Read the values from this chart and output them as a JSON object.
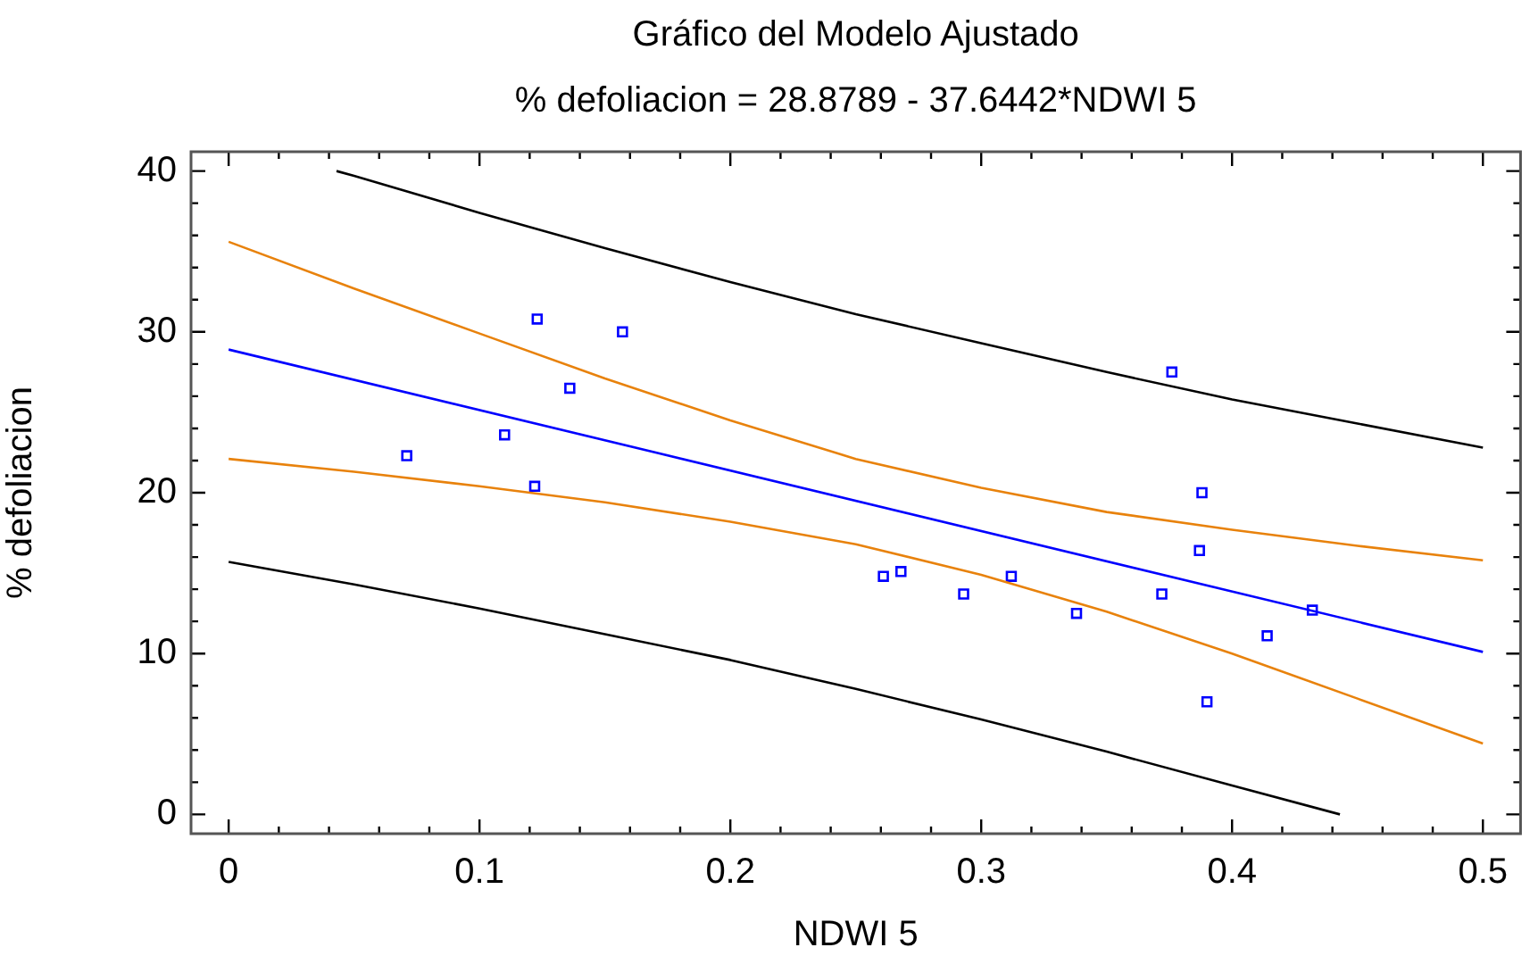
{
  "chart_data": {
    "type": "scatter",
    "title": "Gráfico del Modelo Ajustado",
    "subtitle": "% defoliacion = 28.8789 - 37.6442*NDWI 5",
    "xlabel": "NDWI 5",
    "ylabel": "% defoliacion",
    "xlim": [
      -0.015,
      0.515
    ],
    "ylim": [
      -1.2,
      41.2
    ],
    "xticks": [
      0,
      {
        "value": 0.02,
        "label": null
      },
      {
        "value": 0.04,
        "label": null
      },
      {
        "value": 0.06,
        "label": null
      },
      {
        "value": 0.08,
        "label": null
      },
      0.1,
      {
        "value": 0.12,
        "label": null
      },
      {
        "value": 0.14,
        "label": null
      },
      {
        "value": 0.16,
        "label": null
      },
      {
        "value": 0.18,
        "label": null
      },
      0.2,
      {
        "value": 0.22,
        "label": null
      },
      {
        "value": 0.24,
        "label": null
      },
      {
        "value": 0.26,
        "label": null
      },
      {
        "value": 0.28,
        "label": null
      },
      0.3,
      {
        "value": 0.32,
        "label": null
      },
      {
        "value": 0.34,
        "label": null
      },
      {
        "value": 0.36,
        "label": null
      },
      {
        "value": 0.38,
        "label": null
      },
      0.4,
      {
        "value": 0.42,
        "label": null
      },
      {
        "value": 0.44,
        "label": null
      },
      {
        "value": 0.46,
        "label": null
      },
      {
        "value": 0.48,
        "label": null
      },
      0.5
    ],
    "yticks": [
      0,
      {
        "value": 2,
        "label": null
      },
      {
        "value": 4,
        "label": null
      },
      {
        "value": 6,
        "label": null
      },
      {
        "value": 8,
        "label": null
      },
      10,
      {
        "value": 12,
        "label": null
      },
      {
        "value": 14,
        "label": null
      },
      {
        "value": 16,
        "label": null
      },
      {
        "value": 18,
        "label": null
      },
      20,
      {
        "value": 22,
        "label": null
      },
      {
        "value": 24,
        "label": null
      },
      {
        "value": 26,
        "label": null
      },
      {
        "value": 28,
        "label": null
      },
      30,
      {
        "value": 32,
        "label": null
      },
      {
        "value": 34,
        "label": null
      },
      {
        "value": 36,
        "label": null
      },
      {
        "value": 38,
        "label": null
      },
      40
    ],
    "series": [
      {
        "type": "line",
        "color": "#000000",
        "marker": "none",
        "x": [
          0.043,
          0.05,
          0.1,
          0.15,
          0.2,
          0.25,
          0.3,
          0.35,
          0.4,
          0.45,
          0.5
        ],
        "values": [
          40.0,
          39.7,
          37.4,
          35.2,
          33.1,
          31.1,
          29.3,
          27.5,
          25.8,
          24.3,
          22.8
        ]
      },
      {
        "type": "line",
        "color": "#e8820c",
        "marker": "none",
        "x": [
          0,
          0.05,
          0.1,
          0.15,
          0.2,
          0.25,
          0.3,
          0.35,
          0.4,
          0.45,
          0.5
        ],
        "values": [
          35.6,
          32.7,
          29.9,
          27.1,
          24.5,
          22.1,
          20.3,
          18.8,
          17.7,
          16.7,
          15.8
        ]
      },
      {
        "type": "line",
        "color": "#0000ff",
        "marker": "none",
        "x": [
          0,
          0.5
        ],
        "values": [
          28.9,
          10.1
        ]
      },
      {
        "type": "line",
        "color": "#e8820c",
        "marker": "none",
        "x": [
          0,
          0.05,
          0.1,
          0.15,
          0.2,
          0.25,
          0.3,
          0.35,
          0.4,
          0.45,
          0.5
        ],
        "values": [
          22.1,
          21.3,
          20.4,
          19.4,
          18.2,
          16.8,
          14.9,
          12.6,
          10.0,
          7.2,
          4.4
        ]
      },
      {
        "type": "line",
        "color": "#000000",
        "marker": "none",
        "x": [
          0,
          0.05,
          0.1,
          0.15,
          0.2,
          0.25,
          0.3,
          0.35,
          0.4,
          0.443
        ],
        "values": [
          15.7,
          14.3,
          12.8,
          11.2,
          9.6,
          7.8,
          5.9,
          3.9,
          1.8,
          0.0
        ]
      },
      {
        "type": "scatter",
        "color": "#0000ff",
        "marker": "square",
        "x": [
          0.071,
          0.11,
          0.122,
          0.123,
          0.136,
          0.157,
          0.261,
          0.268,
          0.293,
          0.312,
          0.338,
          0.372,
          0.376,
          0.388,
          0.387,
          0.39,
          0.414,
          0.432
        ],
        "values": [
          22.3,
          23.6,
          20.4,
          30.8,
          26.5,
          30.0,
          14.8,
          15.1,
          13.7,
          14.8,
          12.5,
          13.7,
          27.5,
          20.0,
          16.4,
          7.0,
          11.1,
          12.7
        ]
      }
    ]
  }
}
